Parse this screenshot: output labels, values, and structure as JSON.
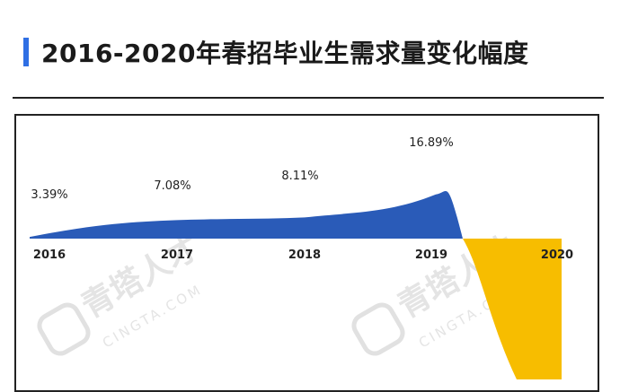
{
  "header": {
    "title": "2016-2020年春招毕业生需求量变化幅度",
    "accent_color": "#2f6fe4"
  },
  "watermark": {
    "name": "青塔人才",
    "site": "CINGTA.COM"
  },
  "chart_data": {
    "type": "area",
    "title": "2016-2020年春招毕业生需求量变化幅度",
    "categories": [
      "2016",
      "2017",
      "2018",
      "2019",
      "2020"
    ],
    "values": [
      3.39,
      7.08,
      8.11,
      16.89,
      null
    ],
    "labels": [
      "3.39%",
      "7.08%",
      "8.11%",
      "16.89%",
      ""
    ],
    "positive_color": "#2a5bb8",
    "negative_color": "#f7bd00",
    "grid": false,
    "legend": "none"
  }
}
